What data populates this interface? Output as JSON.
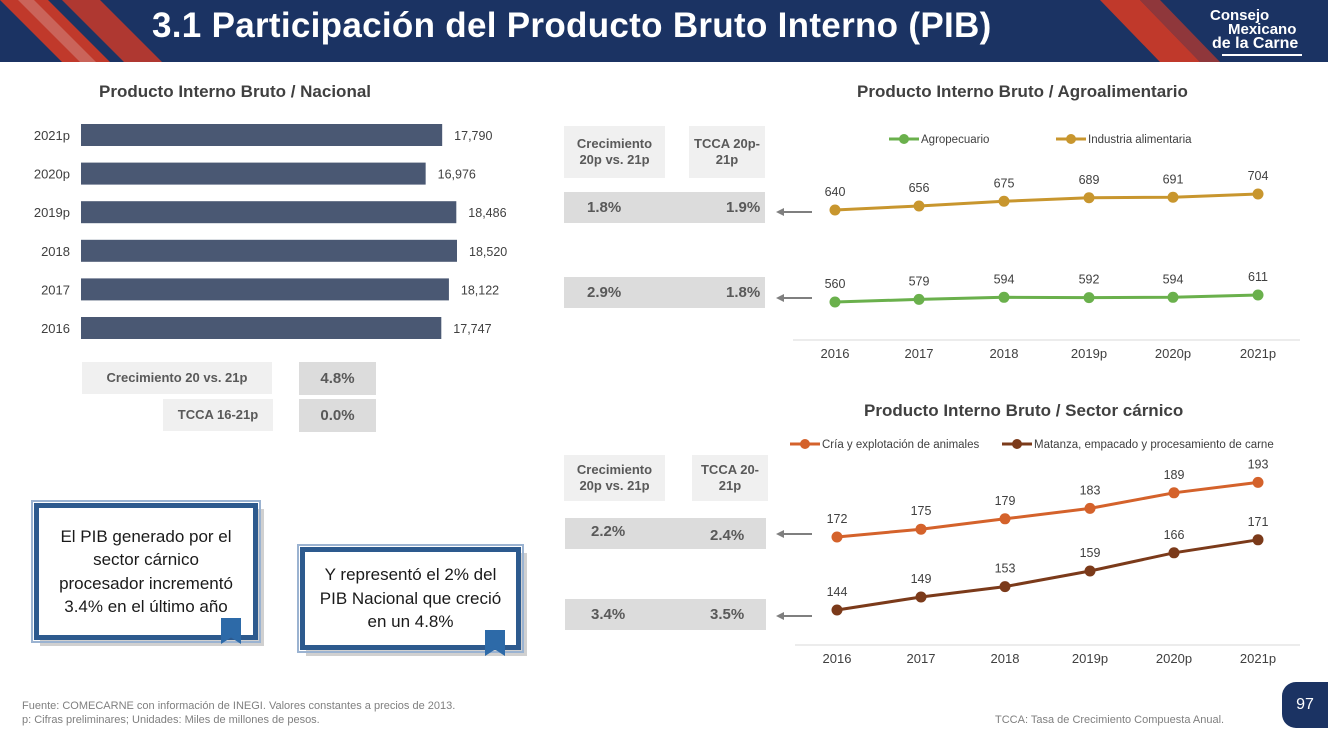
{
  "header": {
    "title": "3.1 Participación del Producto Bruto Interno (PIB)",
    "logo_line1": "Consejo",
    "logo_line2": "Mexicano",
    "logo_line3": "de la Carne"
  },
  "colors": {
    "navy": "#1b3363",
    "red": "#c0392b",
    "bar": "#4a5873",
    "agropecuario": "#6ab04c",
    "industria": "#c8962e",
    "cria": "#d4622b",
    "matanza": "#7b3a1a"
  },
  "nacional": {
    "title": "Producto Interno Bruto / Nacional",
    "crecimiento_label": "Crecimiento 20 vs. 21p",
    "crecimiento_value": "4.8%",
    "tcca_label": "TCCA 16-21p",
    "tcca_value": "0.0%"
  },
  "agro": {
    "title": "Producto Interno Bruto / Agroalimentario",
    "head_crec": "Crecimiento 20p vs. 21p",
    "head_tcca": "TCCA 20p-21p",
    "row1_crec": "1.8%",
    "row1_tcca": "1.9%",
    "row2_crec": "2.9%",
    "row2_tcca": "1.8%"
  },
  "carnico": {
    "title": "Producto Interno Bruto / Sector cárnico",
    "head_crec": "Crecimiento 20p vs. 21p",
    "head_tcca": "TCCA 20-21p",
    "row1_crec": "2.2%",
    "row1_tcca": "2.4%",
    "row2_crec": "3.4%",
    "row2_tcca": "3.5%"
  },
  "callouts": {
    "left": "El PIB generado por el sector cárnico procesador incrementó 3.4% en el último año",
    "right": "Y representó el 2% del PIB Nacional que creció en un 4.8%"
  },
  "footer": {
    "source": "Fuente: COMECARNE con información de INEGI. Valores constantes a precios de 2013.",
    "note": "p: Cifras preliminares; Unidades: Miles de millones de pesos.",
    "tcca_def": "TCCA: Tasa de Crecimiento Compuesta Anual.",
    "page": "97"
  },
  "chart_data": [
    {
      "type": "bar",
      "orientation": "horizontal",
      "title": "Producto Interno Bruto / Nacional",
      "categories": [
        "2021p",
        "2020p",
        "2019p",
        "2018",
        "2017",
        "2016"
      ],
      "values": [
        17790,
        16976,
        18486,
        18520,
        18122,
        17747
      ],
      "labels": [
        "17,790",
        "16,976",
        "18,486",
        "18,520",
        "18,122",
        "17,747"
      ],
      "xlim": [
        0,
        18520
      ]
    },
    {
      "type": "line",
      "title": "Producto Interno Bruto / Agroalimentario",
      "categories": [
        "2016",
        "2017",
        "2018",
        "2019p",
        "2020p",
        "2021p"
      ],
      "legend_position": "top",
      "series": [
        {
          "name": "Agropecuario",
          "values": [
            560,
            579,
            594,
            592,
            594,
            611
          ]
        },
        {
          "name": "Industria alimentaria",
          "values": [
            640,
            656,
            675,
            689,
            691,
            704
          ]
        }
      ]
    },
    {
      "type": "line",
      "title": "Producto Interno Bruto / Sector cárnico",
      "categories": [
        "2016",
        "2017",
        "2018",
        "2019p",
        "2020p",
        "2021p"
      ],
      "legend_position": "top",
      "series": [
        {
          "name": "Cría y explotación de animales",
          "values": [
            172,
            175,
            179,
            183,
            189,
            193
          ]
        },
        {
          "name": "Matanza, empacado y procesamiento de carne",
          "values": [
            144,
            149,
            153,
            159,
            166,
            171
          ]
        }
      ]
    }
  ]
}
